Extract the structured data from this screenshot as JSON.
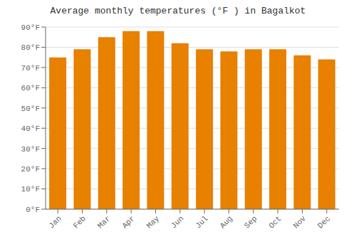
{
  "chart_data": {
    "type": "bar",
    "title": "Average monthly temperatures (°F ) in Bagalkot",
    "categories": [
      "Jan",
      "Feb",
      "Mar",
      "Apr",
      "May",
      "Jun",
      "Jul",
      "Aug",
      "Sep",
      "Oct",
      "Nov",
      "Dec"
    ],
    "values": [
      75,
      79,
      85,
      88,
      88,
      82,
      79,
      78,
      79,
      79,
      76,
      74
    ],
    "color": "#E88000",
    "ylim": [
      0,
      90
    ],
    "yticks": [
      {
        "value": 0,
        "label": "0°F"
      },
      {
        "value": 10,
        "label": "10°F"
      },
      {
        "value": 20,
        "label": "20°F"
      },
      {
        "value": 30,
        "label": "30°F"
      },
      {
        "value": 40,
        "label": "40°F"
      },
      {
        "value": 50,
        "label": "50°F"
      },
      {
        "value": 60,
        "label": "60°F"
      },
      {
        "value": 70,
        "label": "70°F"
      },
      {
        "value": 80,
        "label": "80°F"
      },
      {
        "value": 90,
        "label": "90°F"
      }
    ],
    "grid": true
  }
}
